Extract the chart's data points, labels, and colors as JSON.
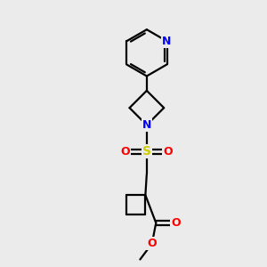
{
  "fig_bg": "#ebebeb",
  "bond_color": "#000000",
  "bond_width": 1.6,
  "atom_colors": {
    "N": "#0000ff",
    "O": "#ff0000",
    "S": "#cccc00",
    "C": "#000000"
  },
  "font_size_atom": 8.5
}
